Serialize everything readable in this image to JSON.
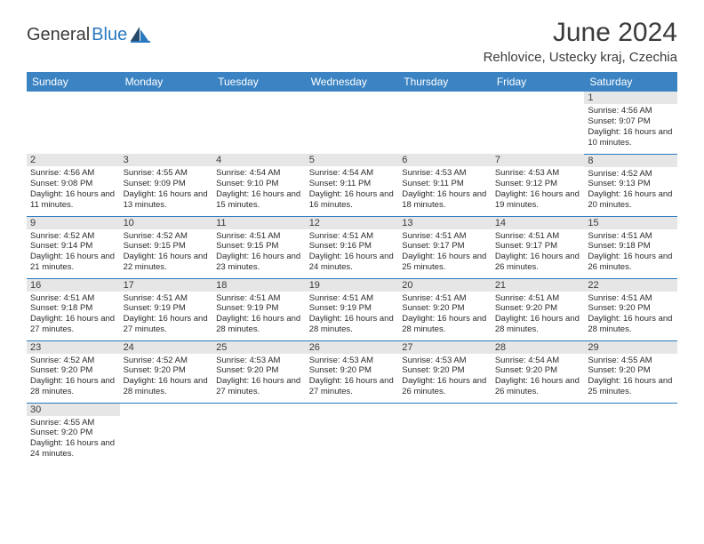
{
  "logo": {
    "text_dark": "General",
    "text_blue": "Blue"
  },
  "title": "June 2024",
  "location": "Rehlovice, Ustecky kraj, Czechia",
  "colors": {
    "header_bg": "#3b83c2",
    "header_text": "#ffffff",
    "daynum_bg": "#e6e6e6",
    "border": "#2a78c0",
    "text": "#2b2b2b",
    "logo_blue": "#2a78c0",
    "logo_dark": "#3a3a3a"
  },
  "weekdays": [
    "Sunday",
    "Monday",
    "Tuesday",
    "Wednesday",
    "Thursday",
    "Friday",
    "Saturday"
  ],
  "weeks": [
    [
      null,
      null,
      null,
      null,
      null,
      null,
      {
        "n": "1",
        "sunrise": "4:56 AM",
        "sunset": "9:07 PM",
        "daylight": "16 hours and 10 minutes."
      }
    ],
    [
      {
        "n": "2",
        "sunrise": "4:56 AM",
        "sunset": "9:08 PM",
        "daylight": "16 hours and 11 minutes."
      },
      {
        "n": "3",
        "sunrise": "4:55 AM",
        "sunset": "9:09 PM",
        "daylight": "16 hours and 13 minutes."
      },
      {
        "n": "4",
        "sunrise": "4:54 AM",
        "sunset": "9:10 PM",
        "daylight": "16 hours and 15 minutes."
      },
      {
        "n": "5",
        "sunrise": "4:54 AM",
        "sunset": "9:11 PM",
        "daylight": "16 hours and 16 minutes."
      },
      {
        "n": "6",
        "sunrise": "4:53 AM",
        "sunset": "9:11 PM",
        "daylight": "16 hours and 18 minutes."
      },
      {
        "n": "7",
        "sunrise": "4:53 AM",
        "sunset": "9:12 PM",
        "daylight": "16 hours and 19 minutes."
      },
      {
        "n": "8",
        "sunrise": "4:52 AM",
        "sunset": "9:13 PM",
        "daylight": "16 hours and 20 minutes."
      }
    ],
    [
      {
        "n": "9",
        "sunrise": "4:52 AM",
        "sunset": "9:14 PM",
        "daylight": "16 hours and 21 minutes."
      },
      {
        "n": "10",
        "sunrise": "4:52 AM",
        "sunset": "9:15 PM",
        "daylight": "16 hours and 22 minutes."
      },
      {
        "n": "11",
        "sunrise": "4:51 AM",
        "sunset": "9:15 PM",
        "daylight": "16 hours and 23 minutes."
      },
      {
        "n": "12",
        "sunrise": "4:51 AM",
        "sunset": "9:16 PM",
        "daylight": "16 hours and 24 minutes."
      },
      {
        "n": "13",
        "sunrise": "4:51 AM",
        "sunset": "9:17 PM",
        "daylight": "16 hours and 25 minutes."
      },
      {
        "n": "14",
        "sunrise": "4:51 AM",
        "sunset": "9:17 PM",
        "daylight": "16 hours and 26 minutes."
      },
      {
        "n": "15",
        "sunrise": "4:51 AM",
        "sunset": "9:18 PM",
        "daylight": "16 hours and 26 minutes."
      }
    ],
    [
      {
        "n": "16",
        "sunrise": "4:51 AM",
        "sunset": "9:18 PM",
        "daylight": "16 hours and 27 minutes."
      },
      {
        "n": "17",
        "sunrise": "4:51 AM",
        "sunset": "9:19 PM",
        "daylight": "16 hours and 27 minutes."
      },
      {
        "n": "18",
        "sunrise": "4:51 AM",
        "sunset": "9:19 PM",
        "daylight": "16 hours and 28 minutes."
      },
      {
        "n": "19",
        "sunrise": "4:51 AM",
        "sunset": "9:19 PM",
        "daylight": "16 hours and 28 minutes."
      },
      {
        "n": "20",
        "sunrise": "4:51 AM",
        "sunset": "9:20 PM",
        "daylight": "16 hours and 28 minutes."
      },
      {
        "n": "21",
        "sunrise": "4:51 AM",
        "sunset": "9:20 PM",
        "daylight": "16 hours and 28 minutes."
      },
      {
        "n": "22",
        "sunrise": "4:51 AM",
        "sunset": "9:20 PM",
        "daylight": "16 hours and 28 minutes."
      }
    ],
    [
      {
        "n": "23",
        "sunrise": "4:52 AM",
        "sunset": "9:20 PM",
        "daylight": "16 hours and 28 minutes."
      },
      {
        "n": "24",
        "sunrise": "4:52 AM",
        "sunset": "9:20 PM",
        "daylight": "16 hours and 28 minutes."
      },
      {
        "n": "25",
        "sunrise": "4:53 AM",
        "sunset": "9:20 PM",
        "daylight": "16 hours and 27 minutes."
      },
      {
        "n": "26",
        "sunrise": "4:53 AM",
        "sunset": "9:20 PM",
        "daylight": "16 hours and 27 minutes."
      },
      {
        "n": "27",
        "sunrise": "4:53 AM",
        "sunset": "9:20 PM",
        "daylight": "16 hours and 26 minutes."
      },
      {
        "n": "28",
        "sunrise": "4:54 AM",
        "sunset": "9:20 PM",
        "daylight": "16 hours and 26 minutes."
      },
      {
        "n": "29",
        "sunrise": "4:55 AM",
        "sunset": "9:20 PM",
        "daylight": "16 hours and 25 minutes."
      }
    ],
    [
      {
        "n": "30",
        "sunrise": "4:55 AM",
        "sunset": "9:20 PM",
        "daylight": "16 hours and 24 minutes."
      },
      null,
      null,
      null,
      null,
      null,
      null
    ]
  ],
  "labels": {
    "sunrise_prefix": "Sunrise: ",
    "sunset_prefix": "Sunset: ",
    "daylight_prefix": "Daylight: "
  }
}
